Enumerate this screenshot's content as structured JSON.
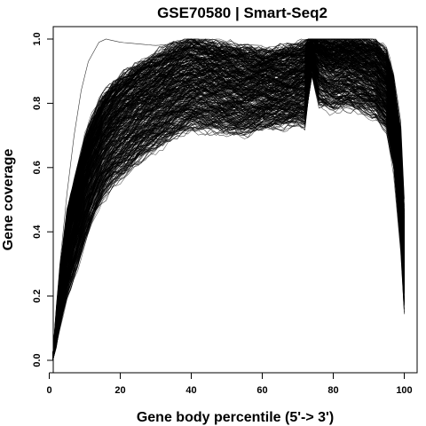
{
  "chart_data": {
    "type": "line",
    "title": "GSE70580 | Smart-Seq2",
    "xlabel": "Gene body percentile (5'-> 3')",
    "ylabel": "Gene coverage",
    "xlim": [
      1,
      100
    ],
    "ylim": [
      0,
      1
    ],
    "xticks": [
      0,
      20,
      40,
      60,
      80,
      100
    ],
    "yticks": [
      0.0,
      0.2,
      0.4,
      0.6,
      0.8,
      1.0
    ],
    "xtick_labels": [
      "0",
      "20",
      "40",
      "60",
      "80",
      "100"
    ],
    "ytick_labels": [
      "0.0",
      "0.2",
      "0.4",
      "0.6",
      "0.8",
      "1.0"
    ],
    "grid": false,
    "legend": "none",
    "line_color": "#000000",
    "series_count": 400,
    "profile": {
      "x": [
        1,
        3,
        5,
        8,
        10,
        12,
        15,
        18,
        20,
        25,
        30,
        35,
        40,
        45,
        50,
        55,
        60,
        65,
        70,
        72,
        73,
        74,
        76,
        78,
        80,
        84,
        88,
        92,
        95,
        97,
        99,
        100
      ],
      "median": [
        0.0,
        0.2,
        0.34,
        0.47,
        0.55,
        0.61,
        0.68,
        0.72,
        0.74,
        0.78,
        0.81,
        0.84,
        0.86,
        0.86,
        0.85,
        0.84,
        0.85,
        0.85,
        0.86,
        0.87,
        0.93,
        0.97,
        0.95,
        0.93,
        0.92,
        0.92,
        0.91,
        0.89,
        0.85,
        0.75,
        0.55,
        0.3
      ],
      "lower": [
        0.0,
        0.11,
        0.2,
        0.3,
        0.37,
        0.43,
        0.5,
        0.55,
        0.57,
        0.62,
        0.66,
        0.7,
        0.72,
        0.72,
        0.71,
        0.71,
        0.72,
        0.73,
        0.74,
        0.73,
        0.82,
        0.9,
        0.8,
        0.79,
        0.78,
        0.79,
        0.78,
        0.76,
        0.72,
        0.6,
        0.38,
        0.2
      ],
      "upper": [
        0.02,
        0.28,
        0.46,
        0.6,
        0.69,
        0.75,
        0.82,
        0.86,
        0.88,
        0.92,
        0.95,
        0.98,
        1.0,
        0.99,
        0.98,
        0.97,
        0.96,
        0.97,
        0.98,
        0.99,
        1.0,
        1.0,
        1.0,
        1.0,
        1.0,
        1.0,
        1.0,
        0.99,
        0.96,
        0.88,
        0.7,
        0.45
      ]
    },
    "outlier_profile": {
      "x": [
        1,
        3,
        5,
        7,
        9,
        11,
        14,
        16,
        20,
        30,
        40,
        60
      ],
      "y": [
        0.0,
        0.3,
        0.52,
        0.7,
        0.84,
        0.93,
        0.99,
        1.0,
        0.99,
        0.98,
        0.99,
        0.98
      ]
    }
  }
}
